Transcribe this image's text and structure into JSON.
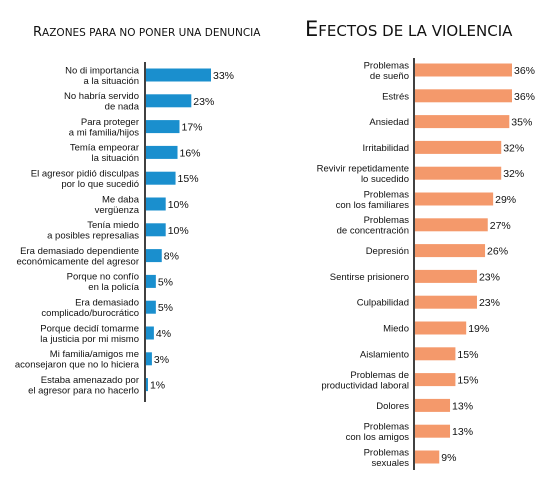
{
  "chart_data": [
    {
      "type": "bar",
      "orientation": "horizontal",
      "title": "Razones para no poner una denuncia",
      "color": "#1a8fce",
      "value_unit": "%",
      "categories": [
        [
          "No di importancia",
          "a la situación"
        ],
        [
          "No habría servido",
          "de nada"
        ],
        [
          "Para proteger",
          "a mi familia/hijos"
        ],
        [
          "Temía empeorar",
          "la situación"
        ],
        [
          "El agresor pidió disculpas",
          "por lo que sucedió"
        ],
        [
          "Me daba",
          "vergüenza"
        ],
        [
          "Tenía miedo",
          "a posibles represalias"
        ],
        [
          "Era demasiado dependiente",
          "económicamente del agresor"
        ],
        [
          "Porque no confío",
          "en la policía"
        ],
        [
          "Era demasiado",
          "complicado/burocrático"
        ],
        [
          "Porque decidí tomarme",
          "la justicia por mi mismo"
        ],
        [
          "Mi familia/amigos me",
          "aconsejaron que no lo hiciera"
        ],
        [
          "Estaba amenazado por",
          "el agresor para no hacerlo"
        ]
      ],
      "values": [
        33,
        23,
        17,
        16,
        15,
        10,
        10,
        8,
        5,
        5,
        4,
        3,
        1
      ]
    },
    {
      "type": "bar",
      "orientation": "horizontal",
      "title": "Efectos de la violencia",
      "color": "#f4996b",
      "value_unit": "%",
      "categories": [
        [
          "Problemas",
          "de sueño"
        ],
        [
          "Estrés"
        ],
        [
          "Ansiedad"
        ],
        [
          "Irritabilidad"
        ],
        [
          "Revivir repetidamente",
          "lo sucedido"
        ],
        [
          "Problemas",
          "con los familiares"
        ],
        [
          "Problemas",
          "de concentración"
        ],
        [
          "Depresión"
        ],
        [
          "Sentirse prisionero"
        ],
        [
          "Culpabilidad"
        ],
        [
          "Miedo"
        ],
        [
          "Aislamiento"
        ],
        [
          "Problemas de",
          "productividad laboral"
        ],
        [
          "Dolores"
        ],
        [
          "Problemas",
          "con los amigos"
        ],
        [
          "Problemas",
          "sexuales"
        ]
      ],
      "values": [
        36,
        36,
        35,
        32,
        32,
        29,
        27,
        26,
        23,
        23,
        19,
        15,
        15,
        13,
        13,
        9
      ]
    }
  ]
}
